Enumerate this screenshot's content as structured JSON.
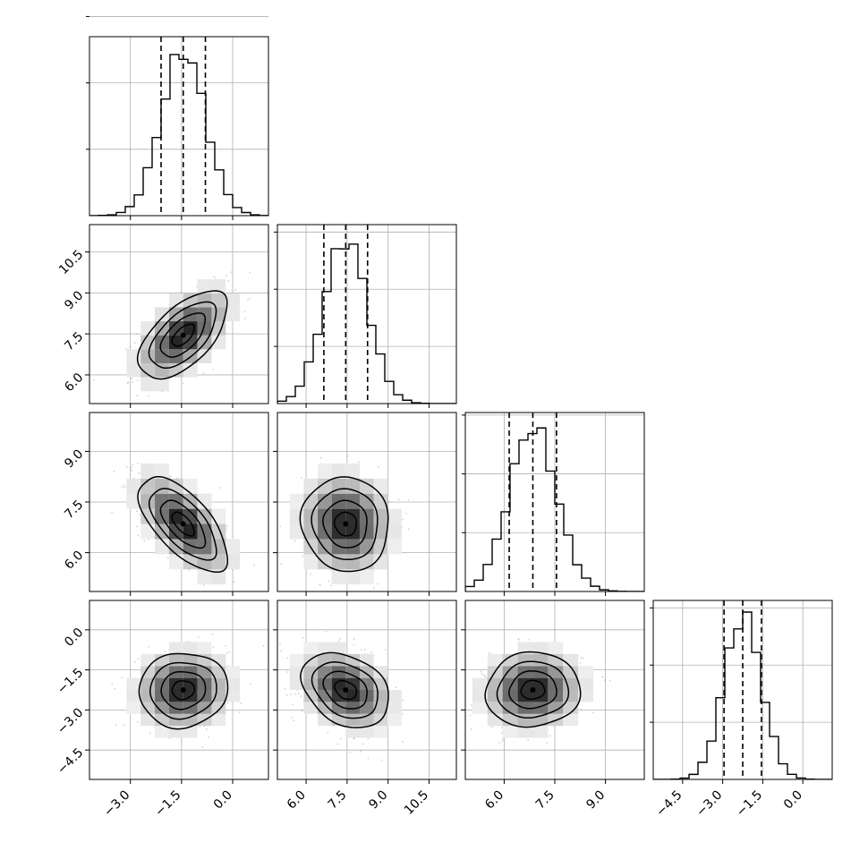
{
  "chart_data": {
    "type": "corner",
    "title": "",
    "parameters": [
      {
        "ticks": [
          -3.0,
          -1.5,
          0.0
        ],
        "tick_labels": [
          "−3.0",
          "−1.5",
          "0.0"
        ],
        "range": [
          -4.2,
          1.05
        ],
        "mean": -1.45,
        "sigma": 0.65,
        "quantiles": [
          -2.1,
          -1.45,
          -0.8
        ],
        "hist_peak": 0.62,
        "show_y_ticks": false
      },
      {
        "ticks": [
          6.0,
          7.5,
          9.0,
          10.5
        ],
        "tick_labels": [
          "6.0",
          "7.5",
          "9.0",
          "10.5"
        ],
        "range": [
          4.95,
          11.5
        ],
        "mean": 7.45,
        "sigma": 0.8,
        "quantiles": [
          6.65,
          7.45,
          8.25
        ],
        "hist_peak": 0.72
      },
      {
        "ticks": [
          6.0,
          7.5,
          9.0
        ],
        "tick_labels": [
          "6.0",
          "7.5",
          "9.0"
        ],
        "range": [
          4.85,
          10.15
        ],
        "mean": 6.85,
        "sigma": 0.7,
        "quantiles": [
          6.15,
          6.85,
          7.55
        ],
        "hist_peak": 0.7
      },
      {
        "ticks": [
          -4.5,
          -3.0,
          -1.5,
          0.0
        ],
        "tick_labels": [
          "−4.5",
          "−3.0",
          "−1.5",
          "0.0"
        ],
        "range": [
          -5.6,
          1.1
        ],
        "mean": -2.25,
        "sigma": 0.7,
        "quantiles": [
          -2.95,
          -2.25,
          -1.55
        ],
        "hist_peak": 0.72
      }
    ],
    "correlations": [
      [
        1.0,
        0.6,
        -0.65,
        0.05
      ],
      [
        0.6,
        1.0,
        -0.05,
        -0.3
      ],
      [
        -0.65,
        -0.05,
        1.0,
        0.05
      ],
      [
        0.05,
        -0.3,
        0.05,
        1.0
      ]
    ],
    "contour_levels": [
      "0.5 sigma",
      "1 sigma",
      "1.5 sigma",
      "2 sigma"
    ],
    "grid": true,
    "xlabel": "",
    "ylabel": "",
    "colors": {
      "line": "#000000",
      "grid": "#b0b0b0",
      "points": "#9a9a9a"
    }
  }
}
